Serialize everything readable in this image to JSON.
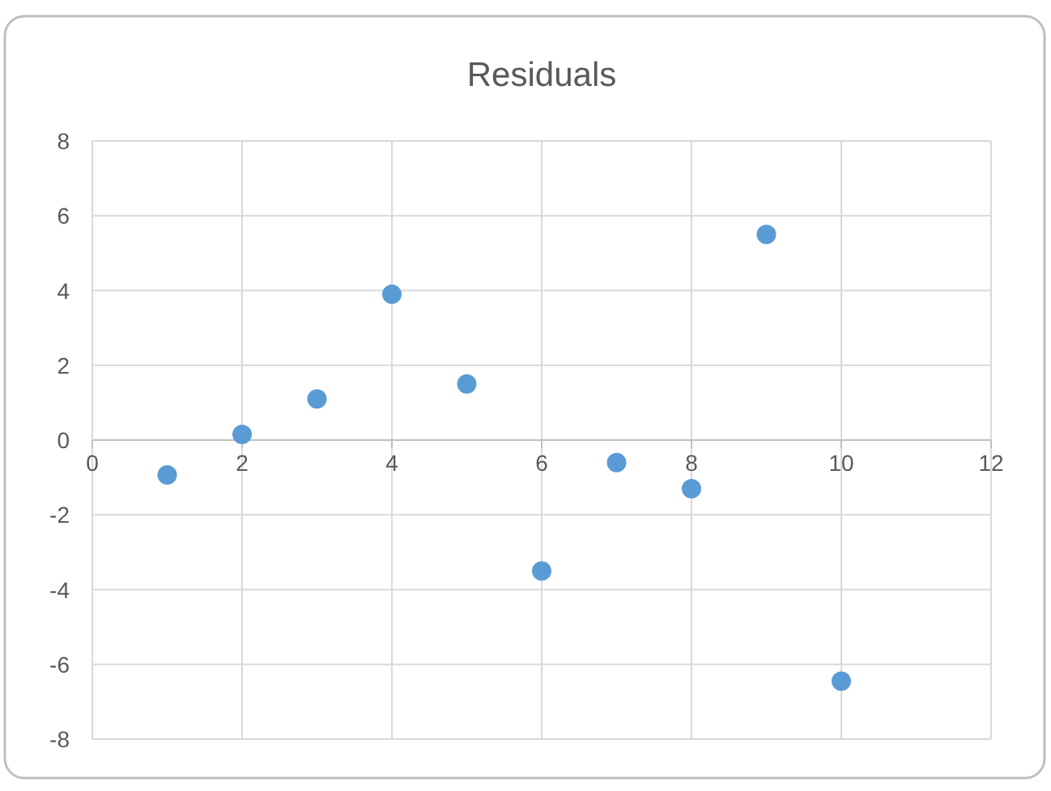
{
  "chart_data": {
    "type": "scatter",
    "title": "Residuals",
    "x": [
      1,
      2,
      3,
      4,
      5,
      6,
      7,
      8,
      9,
      10
    ],
    "series": [
      {
        "color": "#5b9bd5",
        "values": [
          -0.93,
          0.15,
          1.1,
          3.9,
          1.5,
          -3.5,
          -0.6,
          -1.3,
          5.5,
          -6.45
        ]
      }
    ],
    "xlim": [
      0,
      12
    ],
    "xticks": [
      0,
      2,
      4,
      6,
      8,
      10,
      12
    ],
    "ylim": [
      -8,
      8
    ],
    "yticks": [
      -8,
      -6,
      -4,
      -2,
      0,
      2,
      4,
      6,
      8
    ],
    "grid": true,
    "marker": "circle"
  }
}
